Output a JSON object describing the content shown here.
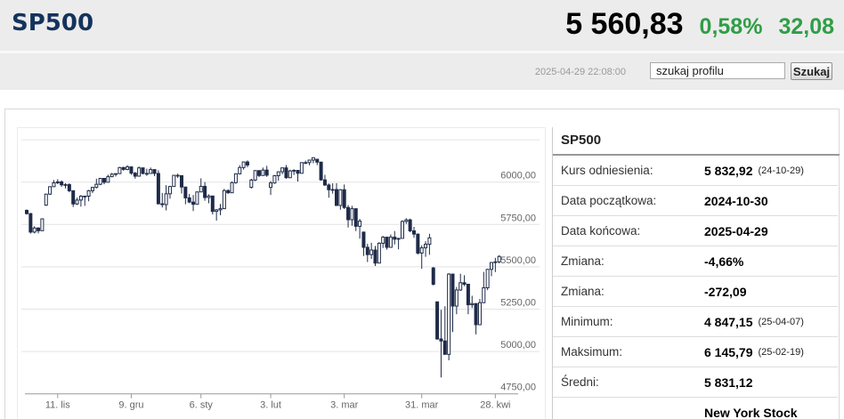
{
  "header": {
    "symbol": "SP500",
    "price": "5 560,83",
    "change_percent": "0,58%",
    "change_value": "32,08",
    "timestamp": "2025-04-29 22:08:00",
    "search_placeholder": "szukaj profilu",
    "search_button": "Szukaj"
  },
  "colors": {
    "green": "#2f9e45",
    "title_navy": "#14335c",
    "candle": "#1f2b48",
    "grid": "#e3e3e3",
    "axis": "#999999",
    "tick_text": "#666666"
  },
  "panel": {
    "title": "SP500",
    "rows": [
      {
        "label": "Kurs odniesienia:",
        "value": "5 832,92",
        "note": "(24-10-29)"
      },
      {
        "label": "Data początkowa:",
        "value": "2024-10-30",
        "note": ""
      },
      {
        "label": "Data końcowa:",
        "value": "2025-04-29",
        "note": ""
      },
      {
        "label": "Zmiana:",
        "value": "-4,66%",
        "note": ""
      },
      {
        "label": "Zmiana:",
        "value": "-272,09",
        "note": ""
      },
      {
        "label": "Minimum:",
        "value": "4 847,15",
        "note": "(25-04-07)"
      },
      {
        "label": "Maksimum:",
        "value": "6 145,79",
        "note": "(25-02-19)"
      },
      {
        "label": "Średni:",
        "value": "5 831,12",
        "note": ""
      },
      {
        "label": "",
        "value": "New York Stock",
        "note": ""
      }
    ]
  },
  "chart_data": {
    "type": "candlestick",
    "symbol": "SP500",
    "date_range": [
      "2024-10-30",
      "2025-04-29"
    ],
    "ylim": [
      4700,
      6280
    ],
    "grid": true,
    "y_ticks": [
      {
        "value": 6250,
        "label": ""
      },
      {
        "value": 6000,
        "label": "6000,00"
      },
      {
        "value": 5750,
        "label": "5750,00"
      },
      {
        "value": 5500,
        "label": "5500,00"
      },
      {
        "value": 5250,
        "label": "5250,00"
      },
      {
        "value": 5000,
        "label": "5000,00"
      },
      {
        "value": 4750,
        "label": "4750,00"
      }
    ],
    "x_ticks": [
      {
        "index": 8,
        "label": "11. lis"
      },
      {
        "index": 27,
        "label": "9. gru"
      },
      {
        "index": 45,
        "label": "6. sty"
      },
      {
        "index": 63,
        "label": "3. lut"
      },
      {
        "index": 82,
        "label": "3. mar"
      },
      {
        "index": 102,
        "label": "31. mar"
      },
      {
        "index": 121,
        "label": "28. kwi"
      }
    ],
    "candles": [
      [
        5833,
        5839,
        5808,
        5814
      ],
      [
        5814,
        5818,
        5696,
        5705
      ],
      [
        5705,
        5740,
        5697,
        5729
      ],
      [
        5729,
        5733,
        5697,
        5713
      ],
      [
        5713,
        5786,
        5713,
        5783
      ],
      [
        5864,
        5930,
        5860,
        5929
      ],
      [
        5929,
        5975,
        5924,
        5973
      ],
      [
        5973,
        6012,
        5973,
        5996
      ],
      [
        5996,
        6017,
        5988,
        6001
      ],
      [
        6001,
        6010,
        5972,
        5984
      ],
      [
        5984,
        5994,
        5963,
        5985
      ],
      [
        5985,
        5993,
        5940,
        5949
      ],
      [
        5949,
        5949,
        5853,
        5871
      ],
      [
        5871,
        5908,
        5865,
        5894
      ],
      [
        5894,
        5923,
        5855,
        5917
      ],
      [
        5917,
        5920,
        5860,
        5917
      ],
      [
        5917,
        5954,
        5887,
        5949
      ],
      [
        5949,
        5970,
        5935,
        5969
      ],
      [
        5969,
        6020,
        5963,
        5987
      ],
      [
        5987,
        6022,
        5982,
        6022
      ],
      [
        6022,
        6023,
        5987,
        5999
      ],
      [
        5999,
        6044,
        5999,
        6032
      ],
      [
        6032,
        6054,
        6029,
        6047
      ],
      [
        6047,
        6050,
        6033,
        6050
      ],
      [
        6050,
        6090,
        6050,
        6086
      ],
      [
        6086,
        6091,
        6067,
        6075
      ],
      [
        6075,
        6100,
        6070,
        6090
      ],
      [
        6090,
        6090,
        6043,
        6053
      ],
      [
        6053,
        6060,
        6020,
        6035
      ],
      [
        6035,
        6092,
        6035,
        6084
      ],
      [
        6084,
        6086,
        6046,
        6051
      ],
      [
        6051,
        6079,
        6037,
        6051
      ],
      [
        6051,
        6086,
        6051,
        6074
      ],
      [
        6074,
        6074,
        6035,
        6051
      ],
      [
        6051,
        6070,
        5868,
        5872
      ],
      [
        5872,
        5936,
        5850,
        5867
      ],
      [
        5867,
        5982,
        5833,
        5931
      ],
      [
        5931,
        5978,
        5902,
        5974
      ],
      [
        5974,
        6041,
        5974,
        6040
      ],
      [
        6040,
        6050,
        6024,
        6038
      ],
      [
        6038,
        6039,
        5933,
        5971
      ],
      [
        5971,
        5971,
        5869,
        5907
      ],
      [
        5907,
        5930,
        5876,
        5882
      ],
      [
        5882,
        5924,
        5829,
        5869
      ],
      [
        5869,
        5943,
        5869,
        5942
      ],
      [
        5942,
        6022,
        5942,
        5975
      ],
      [
        5975,
        6000,
        5890,
        5909
      ],
      [
        5909,
        5928,
        5875,
        5918
      ],
      [
        5918,
        5918,
        5809,
        5827
      ],
      [
        5827,
        5841,
        5773,
        5836
      ],
      [
        5836,
        5871,
        5805,
        5843
      ],
      [
        5843,
        5960,
        5843,
        5950
      ],
      [
        5950,
        5957,
        5931,
        5937
      ],
      [
        5937,
        6004,
        5937,
        5997
      ],
      [
        5997,
        6051,
        5990,
        6049
      ],
      [
        6049,
        6100,
        6045,
        6086
      ],
      [
        6086,
        6119,
        6074,
        6119
      ],
      [
        6119,
        6128,
        6088,
        6101
      ],
      [
        5969,
        6020,
        5962,
        6012
      ],
      [
        6012,
        6070,
        6006,
        6068
      ],
      [
        6068,
        6068,
        6030,
        6039
      ],
      [
        6039,
        6086,
        6039,
        6071
      ],
      [
        6071,
        6096,
        6031,
        6041
      ],
      [
        5969,
        6007,
        5924,
        5995
      ],
      [
        5995,
        6042,
        5990,
        6038
      ],
      [
        6038,
        6063,
        6008,
        6061
      ],
      [
        6061,
        6084,
        6046,
        6084
      ],
      [
        6084,
        6101,
        6020,
        6026
      ],
      [
        6026,
        6073,
        6026,
        6066
      ],
      [
        6066,
        6076,
        6042,
        6069
      ],
      [
        6069,
        6072,
        6003,
        6052
      ],
      [
        6052,
        6116,
        6052,
        6115
      ],
      [
        6115,
        6127,
        6107,
        6115
      ],
      [
        6115,
        6130,
        6099,
        6130
      ],
      [
        6130,
        6146,
        6111,
        6144
      ],
      [
        6135,
        6135,
        6100,
        6118
      ],
      [
        6118,
        6120,
        6008,
        6013
      ],
      [
        6013,
        6043,
        5977,
        5983
      ],
      [
        5983,
        5992,
        5908,
        5955
      ],
      [
        5955,
        5993,
        5932,
        5956
      ],
      [
        5956,
        5994,
        5859,
        5862
      ],
      [
        5862,
        5959,
        5837,
        5955
      ],
      [
        5955,
        5986,
        5841,
        5850
      ],
      [
        5850,
        5865,
        5732,
        5778
      ],
      [
        5778,
        5860,
        5742,
        5843
      ],
      [
        5843,
        5843,
        5711,
        5739
      ],
      [
        5739,
        5783,
        5666,
        5770
      ],
      [
        5705,
        5705,
        5564,
        5615
      ],
      [
        5615,
        5636,
        5528,
        5572
      ],
      [
        5572,
        5642,
        5546,
        5599
      ],
      [
        5599,
        5623,
        5505,
        5522
      ],
      [
        5522,
        5645,
        5522,
        5639
      ],
      [
        5639,
        5682,
        5611,
        5675
      ],
      [
        5675,
        5675,
        5601,
        5615
      ],
      [
        5615,
        5691,
        5615,
        5675
      ],
      [
        5675,
        5711,
        5632,
        5663
      ],
      [
        5663,
        5670,
        5603,
        5668
      ],
      [
        5668,
        5775,
        5668,
        5768
      ],
      [
        5768,
        5787,
        5753,
        5777
      ],
      [
        5777,
        5784,
        5704,
        5712
      ],
      [
        5712,
        5736,
        5671,
        5693
      ],
      [
        5693,
        5697,
        5572,
        5581
      ],
      [
        5581,
        5627,
        5488,
        5612
      ],
      [
        5612,
        5651,
        5559,
        5633
      ],
      [
        5633,
        5695,
        5571,
        5671
      ],
      [
        5493,
        5499,
        5390,
        5397
      ],
      [
        5293,
        5293,
        5069,
        5074
      ],
      [
        5074,
        5246,
        4847,
        5062
      ],
      [
        5062,
        5267,
        4982,
        4983
      ],
      [
        4983,
        5462,
        4948,
        5457
      ],
      [
        5457,
        5457,
        5115,
        5268
      ],
      [
        5268,
        5381,
        5220,
        5363
      ],
      [
        5363,
        5459,
        5358,
        5406
      ],
      [
        5406,
        5450,
        5386,
        5397
      ],
      [
        5397,
        5397,
        5220,
        5276
      ],
      [
        5276,
        5329,
        5256,
        5283
      ],
      [
        5283,
        5283,
        5101,
        5158
      ],
      [
        5158,
        5310,
        5158,
        5288
      ],
      [
        5288,
        5470,
        5288,
        5376
      ],
      [
        5376,
        5487,
        5362,
        5485
      ],
      [
        5485,
        5529,
        5444,
        5525
      ],
      [
        5525,
        5553,
        5469,
        5529
      ],
      [
        5529,
        5569,
        5520,
        5561
      ]
    ]
  }
}
